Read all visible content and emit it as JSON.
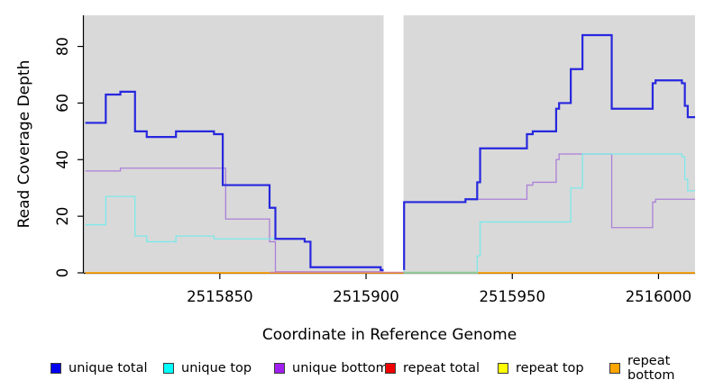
{
  "chart_data": {
    "type": "line",
    "subtype": "step-after",
    "title": "",
    "xlabel": "Coordinate in Reference Genome",
    "ylabel": "Read Coverage Depth",
    "xlim": [
      2515803.5,
      2516012.5
    ],
    "ylim": [
      0,
      91
    ],
    "x_ticks": [
      2515850,
      2515900,
      2515950,
      2516000
    ],
    "y_ticks": [
      0,
      20,
      40,
      60,
      80
    ],
    "grid": false,
    "plot_background": "#d9d9d9",
    "axis_color": "#000000",
    "legend_position": "bottom",
    "gap_region": {
      "x_start": 2515906,
      "x_end": 2515913,
      "color": "#ffffff"
    },
    "overlap_blends": [
      {
        "from": 2515867,
        "to": 2515913,
        "value": 0,
        "color": "#d884a8"
      },
      {
        "from": 2515913,
        "to": 2515938,
        "value": 0,
        "color": "#8fce96"
      }
    ],
    "series": [
      {
        "name": "unique total",
        "color": "#2727de",
        "legend_color": "#0000ee",
        "width": 2.2,
        "split_at_gap": true,
        "points": [
          [
            2515804,
            53
          ],
          [
            2515811,
            63
          ],
          [
            2515816,
            64
          ],
          [
            2515821,
            50
          ],
          [
            2515825,
            48
          ],
          [
            2515835,
            50
          ],
          [
            2515848,
            49
          ],
          [
            2515851,
            31
          ],
          [
            2515867,
            23
          ],
          [
            2515869,
            12
          ],
          [
            2515879,
            11
          ],
          [
            2515881,
            2
          ],
          [
            2515905,
            1
          ],
          [
            2515913,
            25
          ],
          [
            2515934,
            26
          ],
          [
            2515938,
            32
          ],
          [
            2515939,
            44
          ],
          [
            2515955,
            49
          ],
          [
            2515957,
            50
          ],
          [
            2515965,
            58
          ],
          [
            2515966,
            60
          ],
          [
            2515970,
            72
          ],
          [
            2515974,
            84
          ],
          [
            2515984,
            58
          ],
          [
            2515998,
            67
          ],
          [
            2515999,
            68
          ],
          [
            2516008,
            67
          ],
          [
            2516009,
            59
          ],
          [
            2516010,
            55
          ]
        ]
      },
      {
        "name": "unique top",
        "color": "#7de9ea",
        "legend_color": "#00ffff",
        "width": 1.3,
        "split_at_gap": false,
        "points": [
          [
            2515804,
            17
          ],
          [
            2515811,
            27
          ],
          [
            2515821,
            13
          ],
          [
            2515825,
            11
          ],
          [
            2515835,
            13
          ],
          [
            2515848,
            12
          ],
          [
            2515879,
            11
          ],
          [
            2515881,
            2
          ],
          [
            2515905,
            1
          ],
          [
            2515913,
            0
          ],
          [
            2515938,
            6
          ],
          [
            2515939,
            18
          ],
          [
            2515970,
            30
          ],
          [
            2515974,
            42
          ],
          [
            2516008,
            41
          ],
          [
            2516009,
            33
          ],
          [
            2516010,
            29
          ]
        ]
      },
      {
        "name": "unique bottom",
        "color": "#ac7fd9",
        "legend_color": "#a020f0",
        "width": 1.3,
        "split_at_gap": false,
        "points": [
          [
            2515804,
            36
          ],
          [
            2515816,
            37
          ],
          [
            2515852,
            19
          ],
          [
            2515867,
            11
          ],
          [
            2515869,
            0.4
          ],
          [
            2515913,
            25
          ],
          [
            2515934,
            26
          ],
          [
            2515955,
            31
          ],
          [
            2515957,
            32
          ],
          [
            2515965,
            40
          ],
          [
            2515966,
            42
          ],
          [
            2515984,
            16
          ],
          [
            2515998,
            25
          ],
          [
            2515999,
            26
          ]
        ]
      },
      {
        "name": "repeat total",
        "color": "#ee0000",
        "legend_color": "#ee0000",
        "width": 1.2,
        "split_at_gap": false,
        "points": [
          [
            2515804,
            0
          ]
        ]
      },
      {
        "name": "repeat top",
        "color": "#ffff00",
        "legend_color": "#ffff00",
        "width": 1.2,
        "split_at_gap": false,
        "points": [
          [
            2515804,
            0
          ]
        ]
      },
      {
        "name": "repeat bottom",
        "color": "#ffa500",
        "legend_color": "#ffa500",
        "width": 1.5,
        "split_at_gap": false,
        "points": [
          [
            2515804,
            0
          ]
        ]
      }
    ]
  }
}
